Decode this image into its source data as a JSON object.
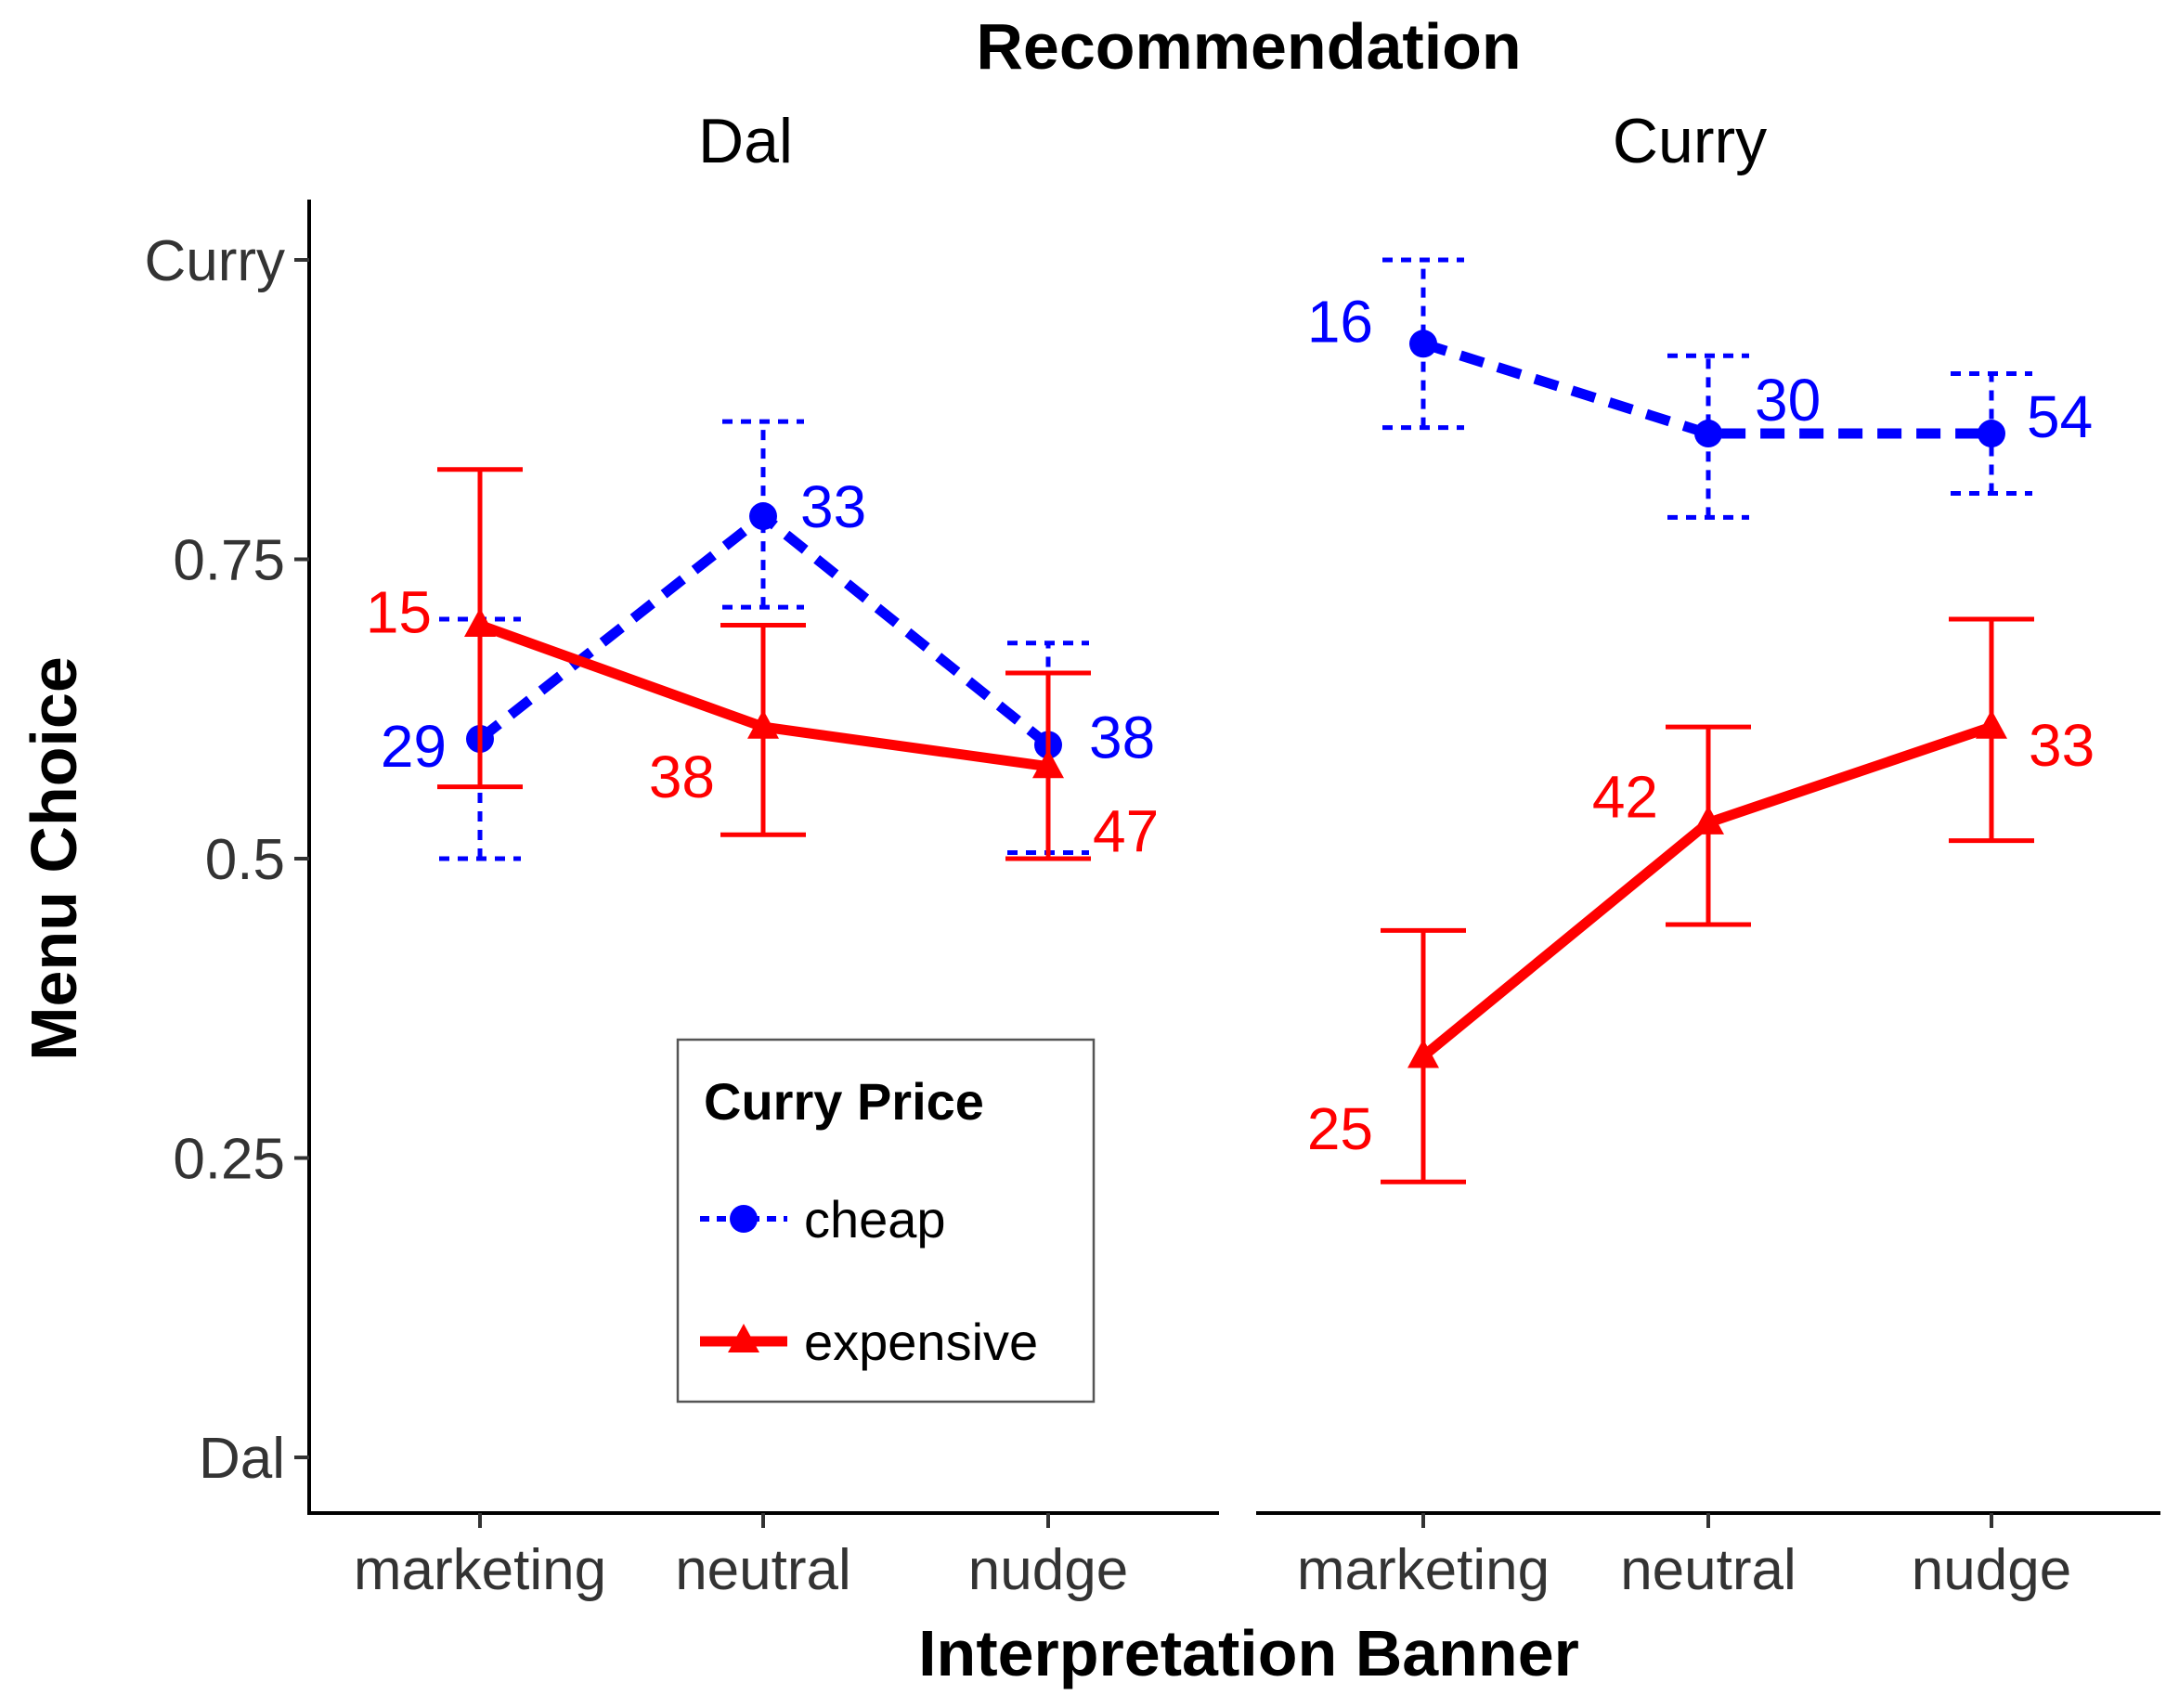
{
  "chart_data": {
    "type": "line",
    "title": "Recommendation",
    "xlabel": "Interpretation Banner",
    "ylabel": "Menu Choice",
    "categories": [
      "marketing",
      "neutral",
      "nudge"
    ],
    "ylim": [
      0,
      1
    ],
    "y_ticks": [
      {
        "value": 1,
        "label": "Curry"
      },
      {
        "value": 0.75,
        "label": "0.75"
      },
      {
        "value": 0.5,
        "label": "0.5"
      },
      {
        "value": 0.25,
        "label": "0.25"
      },
      {
        "value": 0,
        "label": "Dal"
      }
    ],
    "legend": {
      "title": "Curry Price",
      "position": "inside bottom of left panel"
    },
    "colors": {
      "cheap": "#0000ff",
      "expensive": "#ff0000"
    },
    "panels": [
      {
        "strip": "Dal",
        "series": [
          {
            "name": "cheap",
            "values": [
              0.6,
              0.786,
              0.595
            ],
            "lower": [
              0.5,
              0.71,
              0.505
            ],
            "upper": [
              0.7,
              0.865,
              0.68
            ],
            "counts": [
              "29",
              "33",
              "38"
            ]
          },
          {
            "name": "expensive",
            "values": [
              0.695,
              0.61,
              0.577
            ],
            "lower": [
              0.56,
              0.52,
              0.5
            ],
            "upper": [
              0.825,
              0.695,
              0.655
            ],
            "counts": [
              "15",
              "38",
              "47"
            ]
          }
        ]
      },
      {
        "strip": "Curry",
        "series": [
          {
            "name": "cheap",
            "values": [
              0.93,
              0.855,
              0.855
            ],
            "lower": [
              0.86,
              0.785,
              0.805
            ],
            "upper": [
              1.0,
              0.92,
              0.905
            ],
            "counts": [
              "16",
              "30",
              "54"
            ]
          },
          {
            "name": "expensive",
            "values": [
              0.335,
              0.53,
              0.61
            ],
            "lower": [
              0.23,
              0.445,
              0.515
            ],
            "upper": [
              0.44,
              0.61,
              0.7
            ],
            "counts": [
              "25",
              "42",
              "33"
            ]
          }
        ]
      }
    ]
  }
}
